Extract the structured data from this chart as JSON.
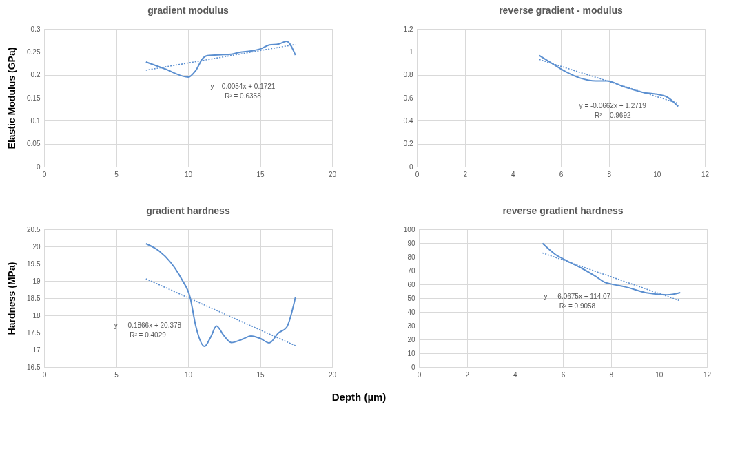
{
  "chart_data": [
    {
      "type": "line",
      "title": "gradient modulus",
      "ylabel": "Elastic  Modulus (GPa)",
      "xlim": [
        0,
        20
      ],
      "xticks": [
        0,
        5,
        10,
        15,
        20
      ],
      "ylim": [
        0,
        0.3
      ],
      "yticks": [
        0,
        0.05,
        0.1,
        0.15,
        0.2,
        0.25,
        0.3
      ],
      "grid": true,
      "series": [
        {
          "color": "#5b8fd0",
          "line_style": "solid",
          "x": [
            7.07,
            8.38,
            10.02,
            10.5,
            11.05,
            11.33,
            12.45,
            13.0,
            13.57,
            14.37,
            15.08,
            15.64,
            16.28,
            16.84,
            17.45
          ],
          "values": [
            0.228,
            0.213,
            0.195,
            0.208,
            0.237,
            0.242,
            0.244,
            0.245,
            0.249,
            0.252,
            0.257,
            0.265,
            0.267,
            0.273,
            0.243
          ]
        },
        {
          "color": "#5b8fd0",
          "line_style": "dotted",
          "x": [
            7.07,
            17.45
          ],
          "values": [
            0.21,
            0.266
          ]
        }
      ],
      "annotations": [
        "y = 0.0054x + 0.1721",
        "R² = 0.6358"
      ]
    },
    {
      "type": "line",
      "title": "reverse gradient - modulus",
      "xlim": [
        0,
        12
      ],
      "xticks": [
        0,
        2,
        4,
        6,
        8,
        10,
        12
      ],
      "ylim": [
        0,
        1.2
      ],
      "yticks": [
        0,
        0.2,
        0.4,
        0.6,
        0.8,
        1,
        1.2
      ],
      "grid": true,
      "series": [
        {
          "color": "#5b8fd0",
          "line_style": "solid",
          "x": [
            5.1,
            5.67,
            6.23,
            6.8,
            7.46,
            7.93,
            8.59,
            9.43,
            10.0,
            10.38,
            10.89
          ],
          "values": [
            0.968,
            0.894,
            0.824,
            0.772,
            0.747,
            0.747,
            0.699,
            0.647,
            0.631,
            0.612,
            0.525
          ]
        },
        {
          "color": "#5b8fd0",
          "line_style": "dotted",
          "x": [
            5.1,
            10.89
          ],
          "values": [
            0.934,
            0.551
          ]
        }
      ],
      "annotations": [
        "y = -0.0662x + 1.2719",
        "R² = 0.9692"
      ]
    },
    {
      "type": "line",
      "title": "gradient hardness",
      "ylabel": "Hardness (MPa)",
      "xlabel": "Depth (µm)",
      "xlim": [
        0,
        20
      ],
      "xticks": [
        0,
        5,
        10,
        15,
        20
      ],
      "ylim": [
        16.5,
        20.5
      ],
      "yticks": [
        16.5,
        17,
        17.5,
        18,
        18.5,
        19,
        19.5,
        20,
        20.5
      ],
      "grid": true,
      "series": [
        {
          "color": "#5b8fd0",
          "line_style": "solid",
          "x": [
            7.07,
            7.98,
            8.78,
            9.58,
            10.14,
            10.53,
            11.14,
            11.57,
            11.97,
            12.45,
            13.0,
            13.73,
            14.37,
            15.0,
            15.64,
            16.28,
            16.84,
            17.45
          ],
          "values": [
            20.08,
            19.87,
            19.54,
            19.03,
            18.52,
            17.69,
            17.1,
            17.37,
            17.69,
            17.43,
            17.21,
            17.3,
            17.4,
            17.33,
            17.2,
            17.49,
            17.65,
            18.52
          ]
        },
        {
          "color": "#5b8fd0",
          "line_style": "dotted",
          "x": [
            7.07,
            17.45
          ],
          "values": [
            19.06,
            17.12
          ]
        }
      ],
      "annotations": [
        "y = -0.1866x + 20.378",
        "R² = 0.4029"
      ]
    },
    {
      "type": "line",
      "title": "reverse gradient hardness",
      "xlim": [
        0,
        12
      ],
      "xticks": [
        0,
        2,
        4,
        6,
        8,
        10,
        12
      ],
      "ylim": [
        0,
        100
      ],
      "yticks": [
        0,
        10,
        20,
        30,
        40,
        50,
        60,
        70,
        80,
        90,
        100
      ],
      "grid": true,
      "series": [
        {
          "color": "#5b8fd0",
          "line_style": "solid",
          "x": [
            5.15,
            5.67,
            6.04,
            6.8,
            7.36,
            7.74,
            8.02,
            8.59,
            9.53,
            10.33,
            10.89
          ],
          "values": [
            89.7,
            81.9,
            78.2,
            71.5,
            65.8,
            61.5,
            60.2,
            58.2,
            53.7,
            52.4,
            54.0
          ]
        },
        {
          "color": "#5b8fd0",
          "line_style": "dotted",
          "x": [
            5.15,
            10.89
          ],
          "values": [
            82.8,
            48.0
          ]
        }
      ],
      "annotations": [
        "y = -6.0675x + 114.07",
        "R² = 0.9058"
      ]
    }
  ]
}
